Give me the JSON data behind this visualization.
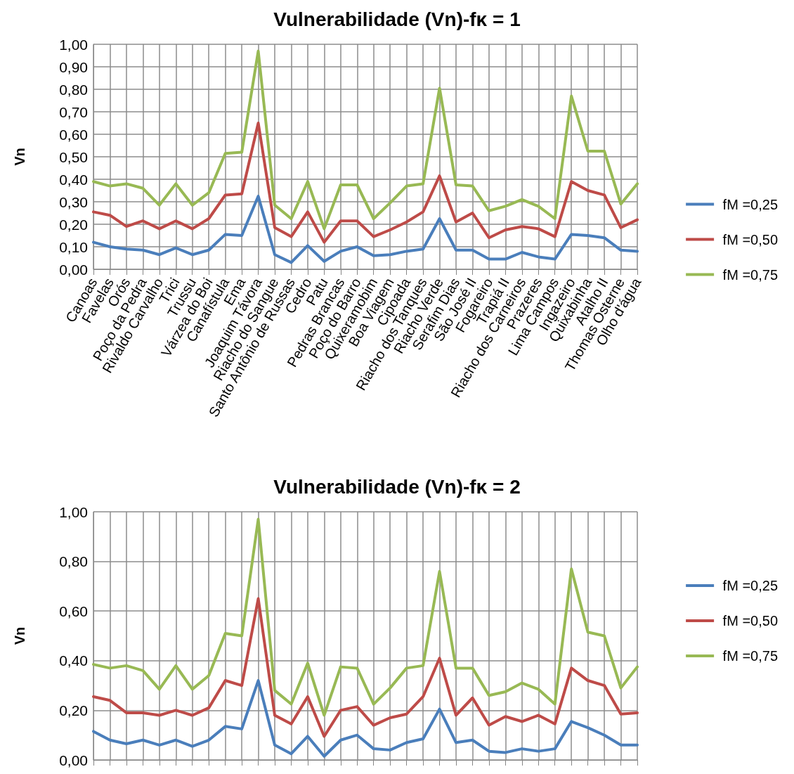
{
  "chart_data": [
    {
      "type": "line",
      "title": "Vulnerabilidade (Vn)-fκ = 1",
      "ylabel": "Vn",
      "categories": [
        "Canoas",
        "Favelas",
        "Orós",
        "Poço da Pedra",
        "Rivaldo Carvalho",
        "Trici",
        "Trussu",
        "Várzea do Boi",
        "Canafístula",
        "Ema",
        "Joaquim Távora",
        "Riacho do Sangue",
        "Santo Antônio de Russas",
        "Cedro",
        "Patu",
        "Pedras Brancas",
        "Poço do Barro",
        "Quixeramobim",
        "Boa Viagem",
        "Cipoada",
        "Riacho dos Tanques",
        "Riacho Verde",
        "Serafim Dias",
        "São José II",
        "Fogareiro",
        "Trapiá II",
        "Riacho dos Carneiros",
        "Prazeres",
        "Lima Campos",
        "Ingazeiro",
        "Quixabinha",
        "Atalho II",
        "Thomas Osterne",
        "Olho d'água"
      ],
      "series": [
        {
          "name": "fM =0,25",
          "color": "#4a7ebb",
          "values": [
            0.12,
            0.1,
            0.09,
            0.085,
            0.065,
            0.095,
            0.065,
            0.085,
            0.155,
            0.15,
            0.325,
            0.065,
            0.03,
            0.105,
            0.035,
            0.08,
            0.1,
            0.06,
            0.065,
            0.08,
            0.09,
            0.225,
            0.085,
            0.085,
            0.045,
            0.045,
            0.075,
            0.055,
            0.045,
            0.155,
            0.15,
            0.14,
            0.085,
            0.08
          ]
        },
        {
          "name": "fM =0,50",
          "color": "#be4b48",
          "values": [
            0.255,
            0.24,
            0.19,
            0.215,
            0.18,
            0.215,
            0.18,
            0.225,
            0.33,
            0.335,
            0.65,
            0.185,
            0.145,
            0.255,
            0.12,
            0.215,
            0.215,
            0.145,
            0.175,
            0.21,
            0.255,
            0.415,
            0.21,
            0.25,
            0.14,
            0.175,
            0.19,
            0.18,
            0.145,
            0.39,
            0.35,
            0.33,
            0.185,
            0.22
          ]
        },
        {
          "name": "fM =0,75",
          "color": "#98b954",
          "values": [
            0.39,
            0.37,
            0.38,
            0.36,
            0.285,
            0.38,
            0.285,
            0.34,
            0.515,
            0.52,
            0.97,
            0.285,
            0.225,
            0.39,
            0.18,
            0.375,
            0.375,
            0.225,
            0.295,
            0.37,
            0.38,
            0.805,
            0.375,
            0.37,
            0.26,
            0.28,
            0.31,
            0.28,
            0.225,
            0.77,
            0.525,
            0.525,
            0.29,
            0.38
          ]
        }
      ],
      "ylim": [
        0,
        1
      ],
      "yticks": [
        {
          "value": 0,
          "label": "0,00"
        },
        {
          "value": 0.1,
          "label": "0,10"
        },
        {
          "value": 0.2,
          "label": "0,20"
        },
        {
          "value": 0.3,
          "label": "0,30"
        },
        {
          "value": 0.4,
          "label": "0,40"
        },
        {
          "value": 0.5,
          "label": "0,50"
        },
        {
          "value": 0.6,
          "label": "0,60"
        },
        {
          "value": 0.7,
          "label": "0,70"
        },
        {
          "value": 0.8,
          "label": "0,80"
        },
        {
          "value": 0.9,
          "label": "0,90"
        },
        {
          "value": 1,
          "label": "1,00"
        }
      ],
      "grid": true,
      "legend": "right",
      "marker": "none",
      "line_style": "solid"
    },
    {
      "type": "line",
      "title": "Vulnerabilidade (Vn)-fκ = 2",
      "ylabel": "Vn",
      "categories": [
        null,
        null,
        null,
        null,
        null,
        null,
        null,
        null,
        null,
        null,
        null,
        null,
        null,
        null,
        null,
        null,
        null,
        null,
        null,
        null,
        null,
        null,
        null,
        null,
        null,
        null,
        null,
        null,
        null,
        null,
        null,
        null,
        null,
        null
      ],
      "series": [
        {
          "name": "fM =0,25",
          "color": "#4a7ebb",
          "values": [
            0.115,
            0.08,
            0.065,
            0.08,
            0.06,
            0.08,
            0.055,
            0.08,
            0.135,
            0.125,
            0.32,
            0.06,
            0.025,
            0.095,
            0.015,
            0.08,
            0.1,
            0.045,
            0.04,
            0.07,
            0.085,
            0.205,
            0.07,
            0.08,
            0.035,
            0.03,
            0.045,
            0.035,
            0.045,
            0.155,
            0.13,
            0.1,
            0.06,
            0.06
          ]
        },
        {
          "name": "fM =0,50",
          "color": "#be4b48",
          "values": [
            0.255,
            0.24,
            0.19,
            0.19,
            0.18,
            0.2,
            0.18,
            0.21,
            0.32,
            0.3,
            0.65,
            0.18,
            0.145,
            0.255,
            0.095,
            0.2,
            0.215,
            0.14,
            0.17,
            0.185,
            0.255,
            0.41,
            0.18,
            0.25,
            0.14,
            0.175,
            0.155,
            0.18,
            0.145,
            0.37,
            0.32,
            0.3,
            0.185,
            0.19
          ]
        },
        {
          "name": "fM =0,75",
          "color": "#98b954",
          "values": [
            0.385,
            0.37,
            0.38,
            0.36,
            0.285,
            0.38,
            0.285,
            0.34,
            0.51,
            0.5,
            0.97,
            0.28,
            0.225,
            0.39,
            0.18,
            0.375,
            0.37,
            0.225,
            0.29,
            0.37,
            0.38,
            0.76,
            0.37,
            0.37,
            0.26,
            0.275,
            0.31,
            0.285,
            0.225,
            0.77,
            0.515,
            0.5,
            0.29,
            0.375
          ]
        }
      ],
      "ylim": [
        0,
        1
      ],
      "yticks": [
        {
          "value": 0,
          "label": "0,00"
        },
        {
          "value": 0.2,
          "label": "0,20"
        },
        {
          "value": 0.4,
          "label": "0,40"
        },
        {
          "value": 0.6,
          "label": "0,60"
        },
        {
          "value": 0.8,
          "label": "0,80"
        },
        {
          "value": 1,
          "label": "1,00"
        }
      ],
      "grid": true,
      "legend": "right",
      "marker": "none",
      "line_style": "solid",
      "tick_labels": "y"
    }
  ]
}
